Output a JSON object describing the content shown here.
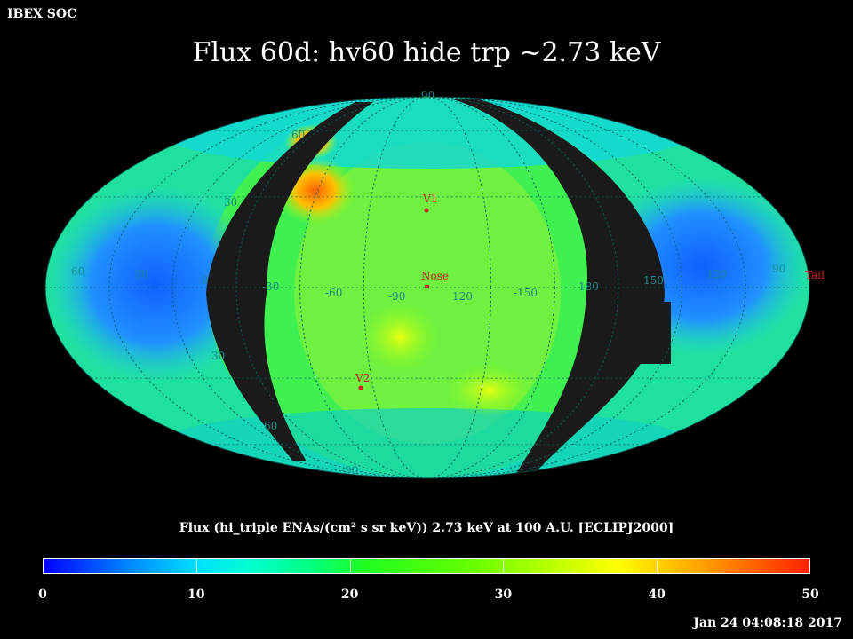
{
  "header": {
    "organization": "IBEX SOC",
    "title": "Flux   60d: hv60 hide trp ~2.73 keV"
  },
  "map": {
    "projection": "Mollweide (ecliptic, centered on nose)",
    "longitude_labels": [
      "60",
      "30",
      "0",
      "-30",
      "-60",
      "-90",
      "120",
      "-150",
      "180",
      "150",
      "120",
      "90"
    ],
    "latitude_labels": [
      "90",
      "60",
      "30",
      "30",
      "60",
      "-90"
    ],
    "markers": [
      {
        "name": "V1",
        "label": "V1"
      },
      {
        "name": "Nose",
        "label": "Nose"
      },
      {
        "name": "V2",
        "label": "V2"
      },
      {
        "name": "Tail",
        "label": "Tail"
      }
    ],
    "colors": {
      "marker": "#cc2020",
      "grid_label": "#1a8a8a",
      "no_data": "#1a1a1a"
    }
  },
  "colorbar": {
    "title": "Flux (hi_triple ENAs/(cm² s sr keV))  2.73 keV at 100 A.U. [ECLIPJ2000]",
    "ticks": [
      "0",
      "10",
      "20",
      "30",
      "40",
      "50"
    ],
    "range": [
      0,
      50
    ]
  },
  "footer": {
    "timestamp": "Jan 24 04:08:18 2017"
  }
}
